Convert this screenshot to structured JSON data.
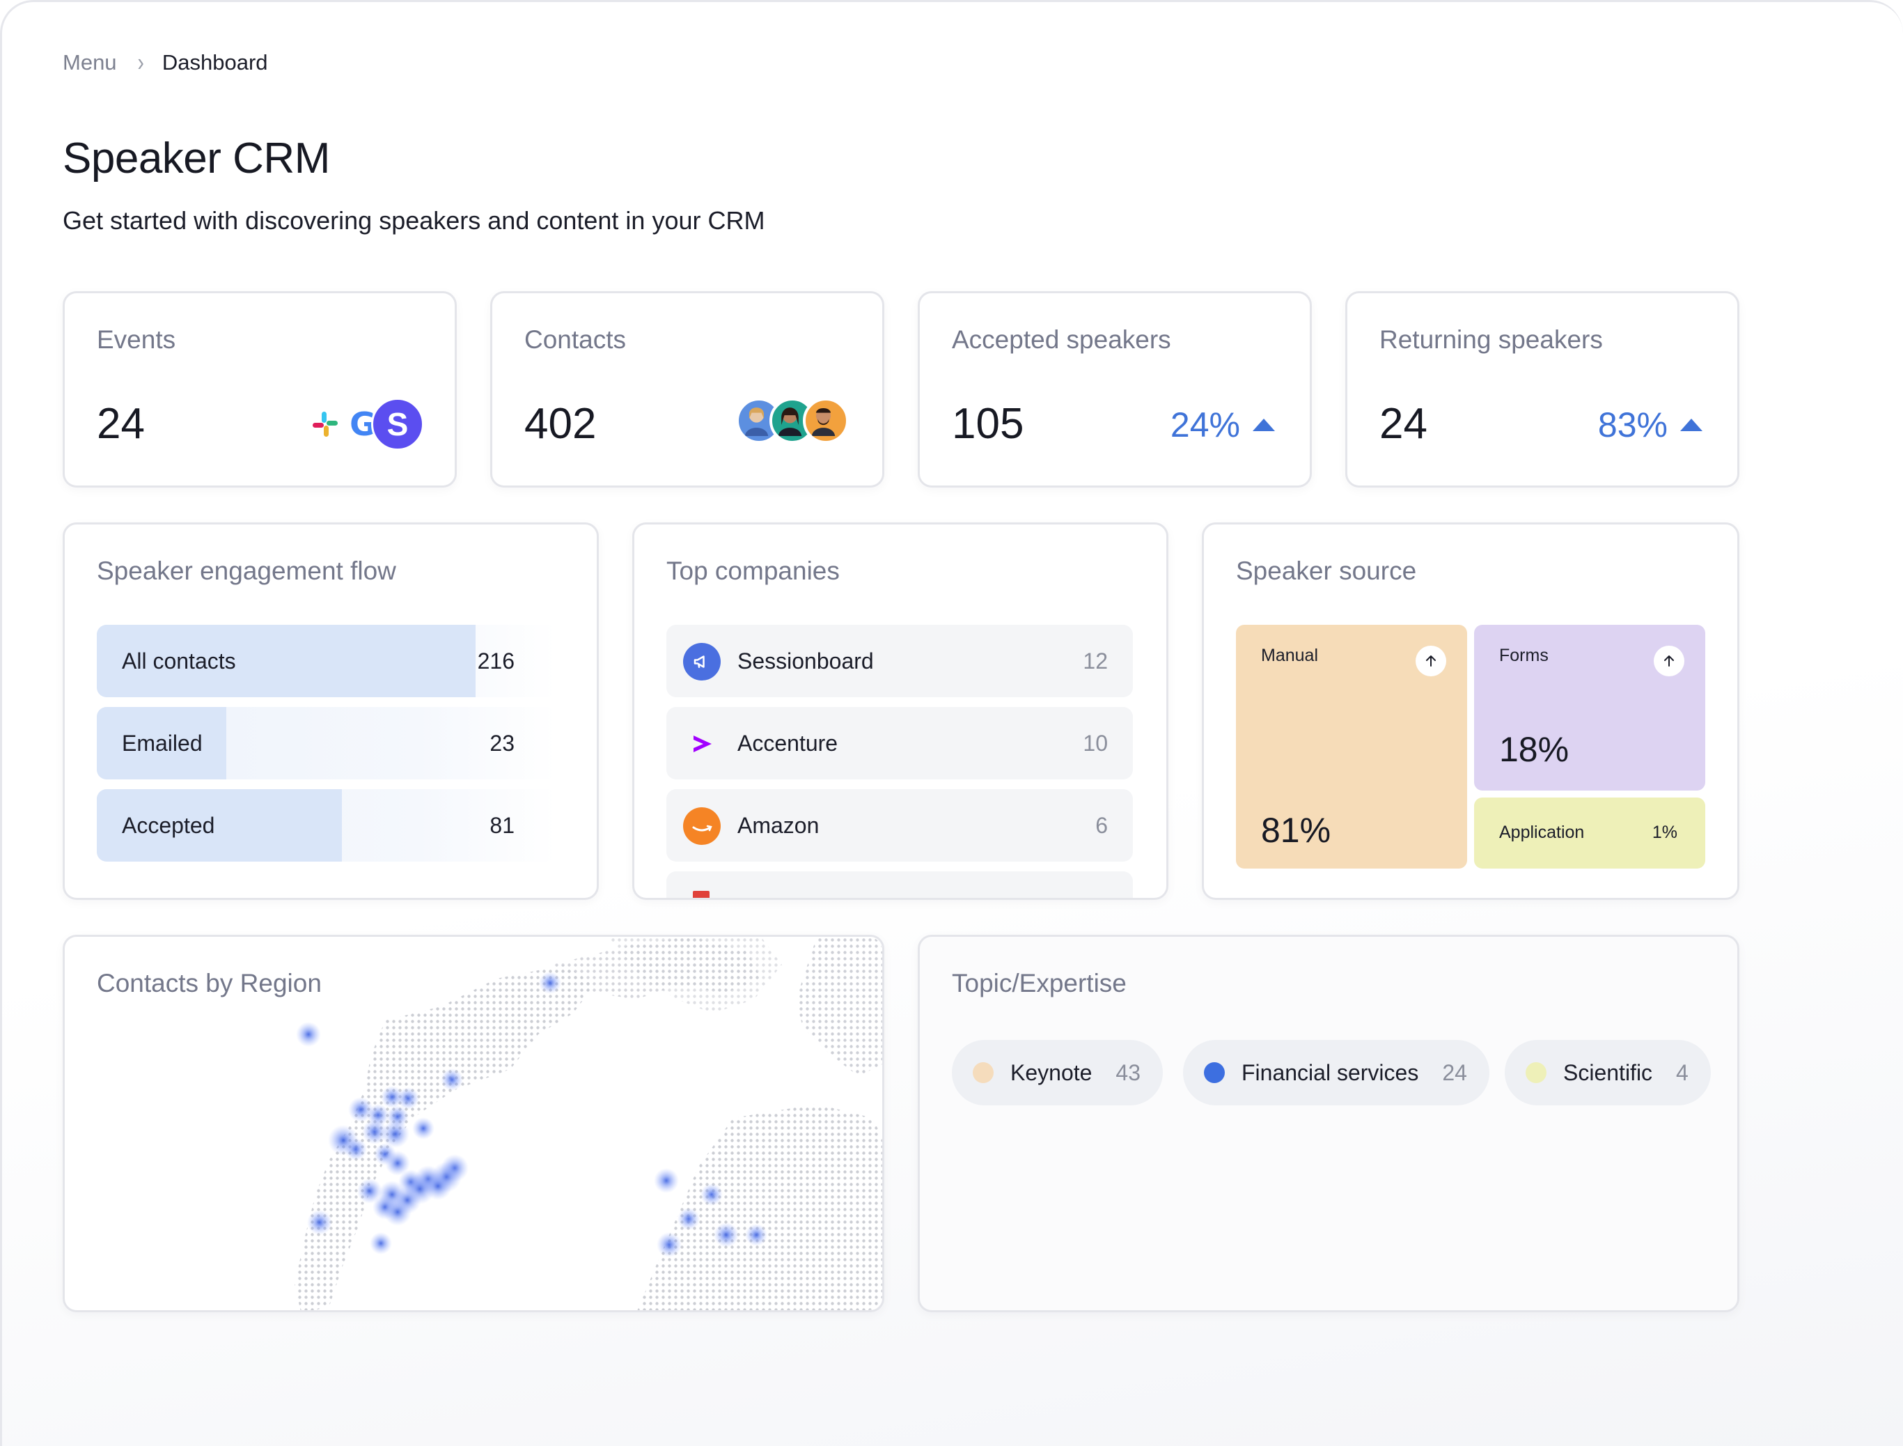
{
  "breadcrumb": {
    "parent": "Menu",
    "current": "Dashboard"
  },
  "page": {
    "title": "Speaker CRM",
    "subtitle": "Get started with discovering speakers and content in your CRM"
  },
  "stats": [
    {
      "label": "Events",
      "value": "24"
    },
    {
      "label": "Contacts",
      "value": "402"
    },
    {
      "label": "Accepted speakers",
      "value": "105",
      "change": "24%"
    },
    {
      "label": "Returning speakers",
      "value": "24",
      "change": "83%"
    }
  ],
  "events_logos": {
    "g_letter": "G",
    "s_letter": "S"
  },
  "engagement": {
    "title": "Speaker engagement flow",
    "rows": [
      {
        "label": "All contacts",
        "value": "216",
        "fill": 0.75
      },
      {
        "label": "Emailed",
        "value": "23",
        "fill": 0.18
      },
      {
        "label": "Accepted",
        "value": "81",
        "fill": 0.43
      }
    ]
  },
  "companies": {
    "title": "Top companies",
    "rows": [
      {
        "name": "Sessionboard",
        "count": "12",
        "icon": "megaphone-icon",
        "color": "#4a6fe0"
      },
      {
        "name": "Accenture",
        "count": "10",
        "icon": "accenture-chevron-icon",
        "color": "#a100ff"
      },
      {
        "name": "Amazon",
        "count": "6",
        "icon": "amazon-smile-icon",
        "color": "#f58425"
      }
    ]
  },
  "source": {
    "title": "Speaker source",
    "tiles": [
      {
        "name": "Manual",
        "pct": "81%",
        "color": "#f6dcb8"
      },
      {
        "name": "Forms",
        "pct": "18%",
        "color": "#ddd3f2"
      },
      {
        "name": "Application",
        "pct": "1%",
        "color": "#eef0b8"
      }
    ]
  },
  "region": {
    "title": "Contacts by Region"
  },
  "topics": {
    "title": "Topic/Expertise",
    "chips": [
      {
        "name": "Keynote",
        "count": "43",
        "color": "#f5dcbc"
      },
      {
        "name": "Financial services",
        "count": "24",
        "color": "#3d6fe0"
      },
      {
        "name": "Scientific",
        "count": "4",
        "color": "#eef0b8"
      }
    ]
  }
}
